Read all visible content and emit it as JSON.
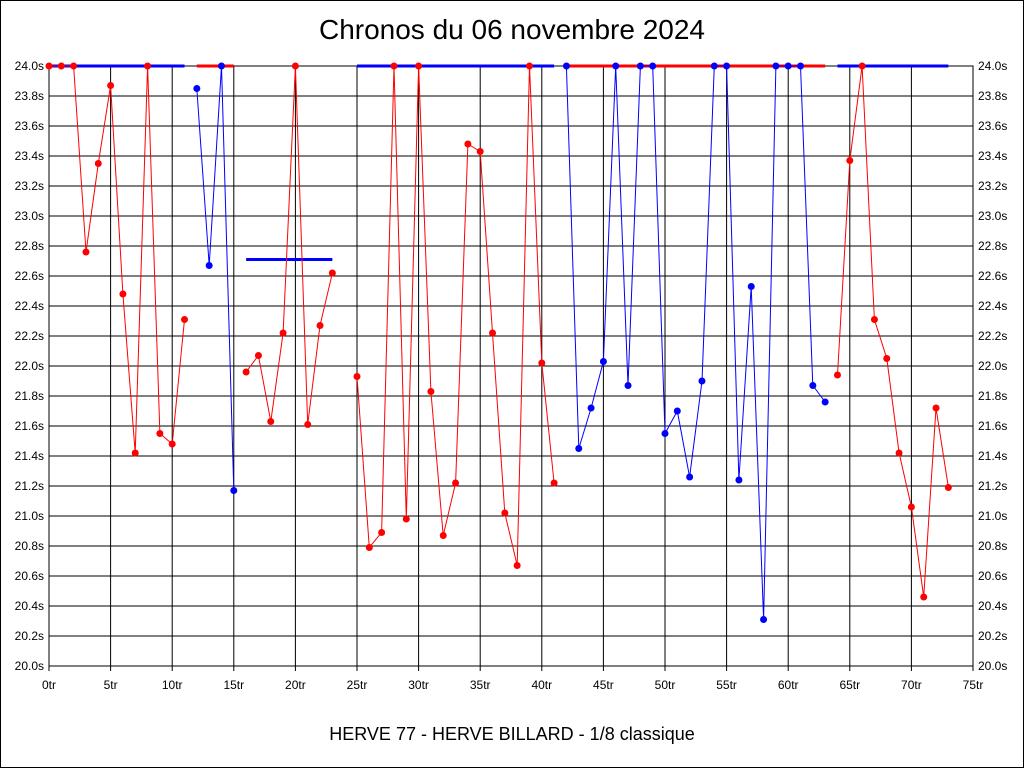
{
  "chart_data": {
    "type": "line",
    "title": "Chronos du 06 novembre 2024",
    "subtitle": "HERVE 77 - HERVE BILLARD - 1/8 classique",
    "xlim": [
      0,
      75
    ],
    "ylim": [
      20.0,
      24.0
    ],
    "x_ticks": [
      0,
      5,
      10,
      15,
      20,
      25,
      30,
      35,
      40,
      45,
      50,
      55,
      60,
      65,
      70,
      75
    ],
    "x_tick_labels": [
      "0tr",
      "5tr",
      "10tr",
      "15tr",
      "20tr",
      "25tr",
      "30tr",
      "35tr",
      "40tr",
      "45tr",
      "50tr",
      "55tr",
      "60tr",
      "65tr",
      "70tr",
      "75tr"
    ],
    "y_ticks": [
      20.0,
      20.2,
      20.4,
      20.6,
      20.8,
      21.0,
      21.2,
      21.4,
      21.6,
      21.8,
      22.0,
      22.2,
      22.4,
      22.6,
      22.8,
      23.0,
      23.2,
      23.4,
      23.6,
      23.8,
      24.0
    ],
    "y_tick_labels": [
      "20.0s",
      "20.2s",
      "20.4s",
      "20.6s",
      "20.8s",
      "21.0s",
      "21.2s",
      "21.4s",
      "21.6s",
      "21.8s",
      "22.0s",
      "22.2s",
      "22.4s",
      "22.6s",
      "22.8s",
      "23.0s",
      "23.2s",
      "23.4s",
      "23.6s",
      "23.8s",
      "24.0s"
    ],
    "grid": true,
    "colors": {
      "red": "#ff0000",
      "blue": "#0000ff"
    },
    "segments": [
      {
        "color": "red",
        "points": [
          [
            0,
            24.0
          ],
          [
            1,
            24.0
          ],
          [
            2,
            24.0
          ],
          [
            3,
            22.76
          ],
          [
            4,
            23.35
          ],
          [
            5,
            23.87
          ],
          [
            6,
            22.48
          ],
          [
            7,
            21.42
          ],
          [
            8,
            24.0
          ],
          [
            9,
            21.55
          ],
          [
            10,
            21.48
          ],
          [
            11,
            22.31
          ]
        ]
      },
      {
        "color": "blue",
        "points": [
          [
            12,
            23.85
          ],
          [
            13,
            22.67
          ],
          [
            14,
            24.0
          ],
          [
            15,
            21.17
          ]
        ]
      },
      {
        "color": "red",
        "points": [
          [
            16,
            21.96
          ],
          [
            17,
            22.07
          ],
          [
            18,
            21.63
          ],
          [
            19,
            22.22
          ],
          [
            20,
            24.0
          ],
          [
            21,
            21.61
          ],
          [
            22,
            22.27
          ],
          [
            23,
            22.62
          ]
        ]
      },
      {
        "color": "red",
        "points": [
          [
            25,
            21.93
          ],
          [
            26,
            20.79
          ],
          [
            27,
            20.89
          ],
          [
            28,
            24.0
          ],
          [
            29,
            20.98
          ],
          [
            30,
            24.0
          ],
          [
            31,
            21.83
          ],
          [
            32,
            20.87
          ],
          [
            33,
            21.22
          ],
          [
            34,
            23.48
          ],
          [
            35,
            23.43
          ],
          [
            36,
            22.22
          ],
          [
            37,
            21.02
          ],
          [
            38,
            20.67
          ],
          [
            39,
            24.0
          ],
          [
            40,
            22.02
          ],
          [
            41,
            21.22
          ]
        ]
      },
      {
        "color": "blue",
        "points": [
          [
            42,
            24.0
          ],
          [
            43,
            21.45
          ],
          [
            44,
            21.72
          ],
          [
            45,
            22.03
          ],
          [
            46,
            24.0
          ],
          [
            47,
            21.87
          ],
          [
            48,
            24.0
          ],
          [
            49,
            24.0
          ],
          [
            50,
            21.55
          ],
          [
            51,
            21.7
          ],
          [
            52,
            21.26
          ],
          [
            53,
            21.9
          ],
          [
            54,
            24.0
          ],
          [
            55,
            24.0
          ],
          [
            56,
            21.24
          ],
          [
            57,
            22.53
          ],
          [
            58,
            20.31
          ],
          [
            59,
            24.0
          ],
          [
            60,
            24.0
          ],
          [
            61,
            24.0
          ],
          [
            62,
            21.87
          ],
          [
            63,
            21.76
          ]
        ]
      },
      {
        "color": "red",
        "points": [
          [
            64,
            21.94
          ],
          [
            65,
            23.37
          ],
          [
            66,
            24.0
          ],
          [
            67,
            22.31
          ],
          [
            68,
            22.05
          ],
          [
            69,
            21.42
          ],
          [
            70,
            21.06
          ],
          [
            71,
            20.46
          ],
          [
            72,
            21.72
          ],
          [
            73,
            21.19
          ]
        ]
      }
    ],
    "average_bars": [
      {
        "color": "blue",
        "x": [
          0,
          11
        ],
        "y": 24.0
      },
      {
        "color": "red",
        "x": [
          12,
          15
        ],
        "y": 24.0
      },
      {
        "color": "blue",
        "x": [
          16,
          23
        ],
        "y": 22.71
      },
      {
        "color": "blue",
        "x": [
          25,
          41
        ],
        "y": 24.0
      },
      {
        "color": "red",
        "x": [
          42,
          63
        ],
        "y": 24.0
      },
      {
        "color": "blue",
        "x": [
          64,
          73
        ],
        "y": 24.0
      }
    ]
  }
}
